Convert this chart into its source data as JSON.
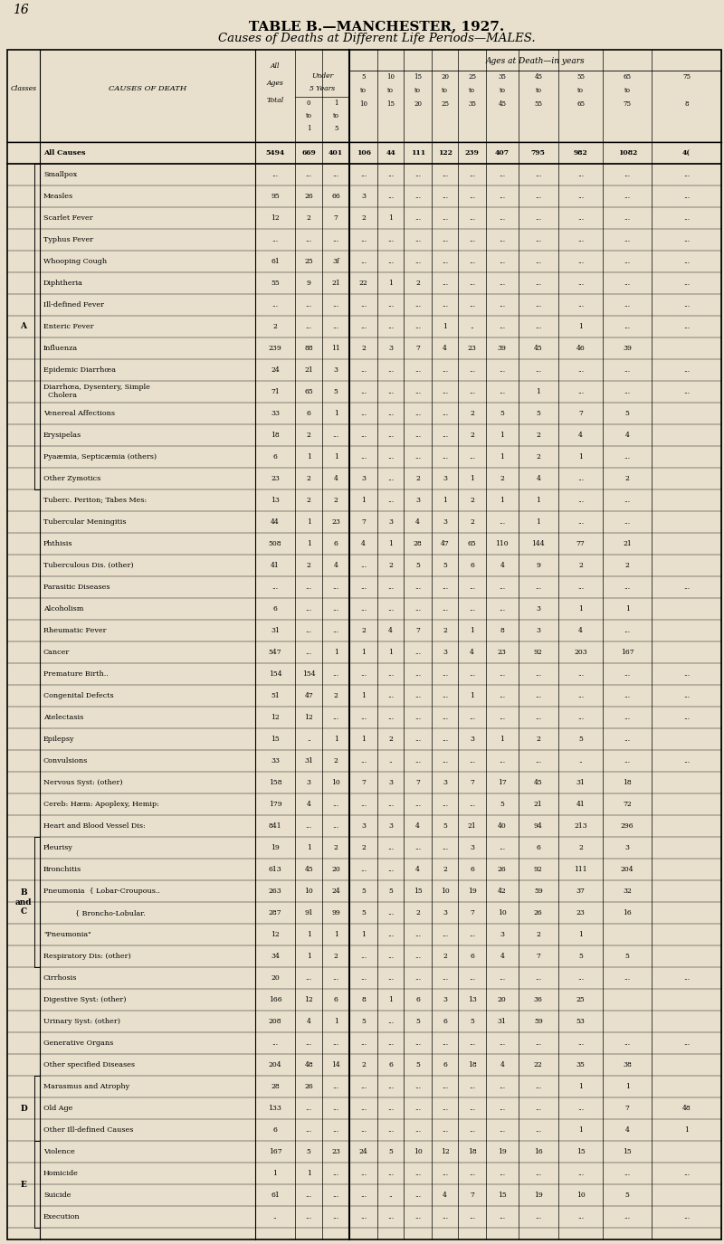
{
  "title1": "TABLE B.—MANCHESTER, 1927.",
  "title2": "Causes of Deaths at Different Life Periods—MALES.",
  "page_number": "16",
  "bg_color": "#e8e0cc",
  "rows": [
    {
      "cause": "All Causes",
      "total": "5494",
      "u0": "669",
      "u1": "401",
      "a5": "106",
      "a10": "44",
      "a15": "111",
      "a20": "122",
      "a25": "239",
      "a35": "407",
      "a45": "795",
      "a55": "982",
      "a65": "1082",
      "a75": "4(",
      "bold": true
    },
    {
      "cause": "Smallpox",
      "total": "...",
      "u0": "...",
      "u1": "...",
      "a5": "...",
      "a10": "...",
      "a15": "...",
      "a20": "...",
      "a25": "...",
      "a35": "...",
      "a45": "...",
      "a55": "...",
      "a65": "...",
      "a75": "..."
    },
    {
      "cause": "Measles",
      "total": "95",
      "u0": "26",
      "u1": "66",
      "a5": "3",
      "a10": "...",
      "a15": "...",
      "a20": "...",
      "a25": "...",
      "a35": "...",
      "a45": "...",
      "a55": "...",
      "a65": "...",
      "a75": "..."
    },
    {
      "cause": "Scarlet Fever",
      "total": "12",
      "u0": "2",
      "u1": "7",
      "a5": "2",
      "a10": "1",
      "a15": "...",
      "a20": "...",
      "a25": "...",
      "a35": "...",
      "a45": "...",
      "a55": "...",
      "a65": "...",
      "a75": "..."
    },
    {
      "cause": "Typhus Fever",
      "total": "...",
      "u0": "...",
      "u1": "...",
      "a5": "...",
      "a10": "...",
      "a15": "...",
      "a20": "...",
      "a25": "...",
      "a35": "...",
      "a45": "...",
      "a55": "...",
      "a65": "...",
      "a75": "..."
    },
    {
      "cause": "Whooping Cough",
      "total": "61",
      "u0": "25",
      "u1": "3f",
      "a5": "...",
      "a10": "...",
      "a15": "...",
      "a20": "...",
      "a25": "...",
      "a35": "...",
      "a45": "...",
      "a55": "...",
      "a65": "...",
      "a75": "..."
    },
    {
      "cause": "Diphtheria",
      "total": "55",
      "u0": "9",
      "u1": "21",
      "a5": "22",
      "a10": "1",
      "a15": "2",
      "a20": "...",
      "a25": "...",
      "a35": "...",
      "a45": "...",
      "a55": "...",
      "a65": "...",
      "a75": "..."
    },
    {
      "cause": "Ill-defined Fever",
      "total": "...",
      "u0": "...",
      "u1": "...",
      "a5": "...",
      "a10": "...",
      "a15": "...",
      "a20": "...",
      "a25": "...",
      "a35": "...",
      "a45": "...",
      "a55": "...",
      "a65": "...",
      "a75": "..."
    },
    {
      "cause": "Enteric Fever",
      "total": "2",
      "u0": "...",
      "u1": "...",
      "a5": "...",
      "a10": "...",
      "a15": "...",
      "a20": "1",
      "a25": "..",
      "a35": "...",
      "a45": "...",
      "a55": "1",
      "a65": "...",
      "a75": "..."
    },
    {
      "cause": "Influenza",
      "total": "239",
      "u0": "88",
      "u1": "11",
      "a5": "2",
      "a10": "3",
      "a15": "7",
      "a20": "4",
      "a25": "23",
      "a35": "39",
      "a45": "45",
      "a55": "46",
      "a65": "39",
      "a75": ""
    },
    {
      "cause": "Epidemic Diarrhœa",
      "total": "24",
      "u0": "21",
      "u1": "3",
      "a5": "...",
      "a10": "...",
      "a15": "...",
      "a20": "...",
      "a25": "...",
      "a35": "...",
      "a45": "...",
      "a55": "...",
      "a65": "...",
      "a75": "..."
    },
    {
      "cause": "Diarrhœa, Dysentery, Simple\n  Cholera",
      "total": "71",
      "u0": "65",
      "u1": "5",
      "a5": "...",
      "a10": "...",
      "a15": "...",
      "a20": "...",
      "a25": "...",
      "a35": "...",
      "a45": "1",
      "a55": "...",
      "a65": "...",
      "a75": "...",
      "multiline": true
    },
    {
      "cause": "Venereal Affections",
      "total": "33",
      "u0": "6",
      "u1": "1",
      "a5": "...",
      "a10": "...",
      "a15": "...",
      "a20": "...",
      "a25": "2",
      "a35": "5",
      "a45": "5",
      "a55": "7",
      "a65": "5",
      "a75": ""
    },
    {
      "cause": "Erysipelas",
      "total": "18",
      "u0": "2",
      "u1": "...",
      "a5": "...",
      "a10": "...",
      "a15": "...",
      "a20": "...",
      "a25": "2",
      "a35": "1",
      "a45": "2",
      "a55": "4",
      "a65": "4",
      "a75": ""
    },
    {
      "cause": "Pyaæmia, Septicæmia (others)",
      "total": "6",
      "u0": "1",
      "u1": "1",
      "a5": "...",
      "a10": "...",
      "a15": "...",
      "a20": "...",
      "a25": "...",
      "a35": "1",
      "a45": "2",
      "a55": "1",
      "a65": "...",
      "a75": ""
    },
    {
      "cause": "Other Zymotics",
      "total": "23",
      "u0": "2",
      "u1": "4",
      "a5": "3",
      "a10": "...",
      "a15": "2",
      "a20": "3",
      "a25": "1",
      "a35": "2",
      "a45": "4",
      "a55": "...",
      "a65": "2",
      "a75": ""
    },
    {
      "cause": "Tuberc. Periton; Tabes Mes:",
      "total": "13",
      "u0": "2",
      "u1": "2",
      "a5": "1",
      "a10": "...",
      "a15": "3",
      "a20": "1",
      "a25": "2",
      "a35": "1",
      "a45": "1",
      "a55": "...",
      "a65": "...",
      "a75": ""
    },
    {
      "cause": "Tubercular Meningitis",
      "total": "44",
      "u0": "1",
      "u1": "23",
      "a5": "7",
      "a10": "3",
      "a15": "4",
      "a20": "3",
      "a25": "2",
      "a35": "...",
      "a45": "1",
      "a55": "...",
      "a65": "...",
      "a75": ""
    },
    {
      "cause": "Phthisis",
      "total": "508",
      "u0": "1",
      "u1": "6",
      "a5": "4",
      "a10": "1",
      "a15": "28",
      "a20": "47",
      "a25": "65",
      "a35": "110",
      "a45": "144",
      "a55": "77",
      "a65": "21",
      "a75": ""
    },
    {
      "cause": "Tuberculous Dis. (other)",
      "total": "41",
      "u0": "2",
      "u1": "4",
      "a5": "...",
      "a10": "2",
      "a15": "5",
      "a20": "5",
      "a25": "6",
      "a35": "4",
      "a45": "9",
      "a55": "2",
      "a65": "2",
      "a75": ""
    },
    {
      "cause": "Parasitic Diseases",
      "total": "...",
      "u0": "...",
      "u1": "...",
      "a5": "...",
      "a10": "...",
      "a15": "...",
      "a20": "...",
      "a25": "...",
      "a35": "...",
      "a45": "...",
      "a55": "...",
      "a65": "...",
      "a75": "..."
    },
    {
      "cause": "Alcoholism",
      "total": "6",
      "u0": "...",
      "u1": "...",
      "a5": "...",
      "a10": "...",
      "a15": "...",
      "a20": "...",
      "a25": "...",
      "a35": "...",
      "a45": "3",
      "a55": "1",
      "a65": "1",
      "a75": ""
    },
    {
      "cause": "Rheumatic Fever",
      "total": "31",
      "u0": "...",
      "u1": "...",
      "a5": "2",
      "a10": "4",
      "a15": "7",
      "a20": "2",
      "a25": "1",
      "a35": "8",
      "a45": "3",
      "a55": "4",
      "a65": "...",
      "a75": ""
    },
    {
      "cause": "Cancer",
      "total": "547",
      "u0": "...",
      "u1": "1",
      "a5": "1",
      "a10": "1",
      "a15": "...",
      "a20": "3",
      "a25": "4",
      "a35": "23",
      "a45": "92",
      "a55": "203",
      "a65": "167",
      "a75": ""
    },
    {
      "cause": "Premature Birth..",
      "total": "154",
      "u0": "154",
      "u1": "...",
      "a5": "...",
      "a10": "...",
      "a15": "...",
      "a20": "...",
      "a25": "...",
      "a35": "...",
      "a45": "...",
      "a55": "...",
      "a65": "...",
      "a75": "..."
    },
    {
      "cause": "Congenital Defects",
      "total": "51",
      "u0": "47",
      "u1": "2",
      "a5": "1",
      "a10": "...",
      "a15": "...",
      "a20": "...",
      "a25": "1",
      "a35": "...",
      "a45": "...",
      "a55": "...",
      "a65": "...",
      "a75": "..."
    },
    {
      "cause": "Atelectasis",
      "total": "12",
      "u0": "12",
      "u1": "...",
      "a5": "...",
      "a10": "...",
      "a15": "...",
      "a20": "...",
      "a25": "...",
      "a35": "...",
      "a45": "...",
      "a55": "...",
      "a65": "...",
      "a75": "..."
    },
    {
      "cause": "Epilepsy",
      "total": "15",
      "u0": "..",
      "u1": "1",
      "a5": "1",
      "a10": "2",
      "a15": "...",
      "a20": "...",
      "a25": "3",
      "a35": "1",
      "a45": "2",
      "a55": "5",
      "a65": "...",
      "a75": ""
    },
    {
      "cause": "Convulsions",
      "total": "33",
      "u0": "31",
      "u1": "2",
      "a5": "...",
      "a10": "..",
      "a15": "...",
      "a20": "...",
      "a25": "...",
      "a35": "...",
      "a45": "...",
      "a55": "..",
      "a65": "...",
      "a75": "..."
    },
    {
      "cause": "Nervous Syst: (other)",
      "total": "158",
      "u0": "3",
      "u1": "10",
      "a5": "7",
      "a10": "3",
      "a15": "7",
      "a20": "3",
      "a25": "7",
      "a35": "17",
      "a45": "45",
      "a55": "31",
      "a65": "18",
      "a75": ""
    },
    {
      "cause": "Cereb: Hæm: Apoplexy, Hemip:",
      "total": "179",
      "u0": "4",
      "u1": "...",
      "a5": "...",
      "a10": "...",
      "a15": "...",
      "a20": "...",
      "a25": "...",
      "a35": "5",
      "a45": "21",
      "a55": "41",
      "a65": "72",
      "a75": ""
    },
    {
      "cause": "Heart and Blood Vessel Dis:",
      "total": "841",
      "u0": "...",
      "u1": "...",
      "a5": "3",
      "a10": "3",
      "a15": "4",
      "a20": "5",
      "a25": "21",
      "a35": "40",
      "a45": "94",
      "a55": "213",
      "a65": "296",
      "a75": ""
    },
    {
      "cause": "Pleurisy",
      "total": "19",
      "u0": "1",
      "u1": "2",
      "a5": "2",
      "a10": "...",
      "a15": "...",
      "a20": "...",
      "a25": "3",
      "a35": "...",
      "a45": "6",
      "a55": "2",
      "a65": "3",
      "a75": ""
    },
    {
      "cause": "Bronchitis",
      "total": "613",
      "u0": "45",
      "u1": "20",
      "a5": "...",
      "a10": "...",
      "a15": "4",
      "a20": "2",
      "a25": "6",
      "a35": "26",
      "a45": "92",
      "a55": "111",
      "a65": "204",
      "a75": ""
    },
    {
      "cause": "Pneumonia  { Lobar-Croupous..",
      "total": "263",
      "u0": "10",
      "u1": "24",
      "a5": "5",
      "a10": "5",
      "a15": "15",
      "a20": "10",
      "a25": "19",
      "a35": "42",
      "a45": "59",
      "a55": "37",
      "a65": "32",
      "a75": ""
    },
    {
      "cause": "              { Broncho-Lobular.",
      "total": "287",
      "u0": "91",
      "u1": "99",
      "a5": "5",
      "a10": "...",
      "a15": "2",
      "a20": "3",
      "a25": "7",
      "a35": "10",
      "a45": "26",
      "a55": "23",
      "a65": "16",
      "a75": ""
    },
    {
      "cause": "\"Pneumonia\"",
      "total": "12",
      "u0": "1",
      "u1": "1",
      "a5": "1",
      "a10": "...",
      "a15": "...",
      "a20": "...",
      "a25": "...",
      "a35": "3",
      "a45": "2",
      "a55": "1",
      "a65": "",
      "a75": ""
    },
    {
      "cause": "Respiratory Dis: (other)",
      "total": "34",
      "u0": "1",
      "u1": "2",
      "a5": "...",
      "a10": "...",
      "a15": "...",
      "a20": "2",
      "a25": "6",
      "a35": "4",
      "a45": "7",
      "a55": "5",
      "a65": "5",
      "a75": ""
    },
    {
      "cause": "Cirrhosis",
      "total": "20",
      "u0": "...",
      "u1": "...",
      "a5": "...",
      "a10": "...",
      "a15": "...",
      "a20": "...",
      "a25": "...",
      "a35": "...",
      "a45": "...",
      "a55": "...",
      "a65": "...",
      "a75": "..."
    },
    {
      "cause": "Digestive Syst: (other)",
      "total": "166",
      "u0": "12",
      "u1": "6",
      "a5": "8",
      "a10": "1",
      "a15": "6",
      "a20": "3",
      "a25": "13",
      "a35": "20",
      "a45": "36",
      "a55": "25",
      "a65": "",
      "a75": ""
    },
    {
      "cause": "Urinary Syst: (other)",
      "total": "208",
      "u0": "4",
      "u1": "1",
      "a5": "5",
      "a10": "...",
      "a15": "5",
      "a20": "6",
      "a25": "5",
      "a35": "31",
      "a45": "59",
      "a55": "53",
      "a65": "",
      "a75": ""
    },
    {
      "cause": "Generative Organs",
      "total": "...",
      "u0": "...",
      "u1": "...",
      "a5": "...",
      "a10": "...",
      "a15": "...",
      "a20": "...",
      "a25": "...",
      "a35": "...",
      "a45": "...",
      "a55": "...",
      "a65": "...",
      "a75": "..."
    },
    {
      "cause": "Other specified Diseases",
      "total": "204",
      "u0": "48",
      "u1": "14",
      "a5": "2",
      "a10": "6",
      "a15": "5",
      "a20": "6",
      "a25": "18",
      "a35": "4",
      "a45": "22",
      "a55": "35",
      "a65": "38",
      "a75": ""
    },
    {
      "cause": "Marasmus and Atrophy",
      "total": "28",
      "u0": "26",
      "u1": "...",
      "a5": "...",
      "a10": "...",
      "a15": "...",
      "a20": "...",
      "a25": "...",
      "a35": "...",
      "a45": "...",
      "a55": "1",
      "a65": "1",
      "a75": ""
    },
    {
      "cause": "Old Age",
      "total": "133",
      "u0": "...",
      "u1": "...",
      "a5": "...",
      "a10": "...",
      "a15": "...",
      "a20": "...",
      "a25": "...",
      "a35": "...",
      "a45": "...",
      "a55": "...",
      "a65": "7",
      "a75": "48"
    },
    {
      "cause": "Other Ill-defined Causes",
      "total": "6",
      "u0": "...",
      "u1": "...",
      "a5": "...",
      "a10": "...",
      "a15": "...",
      "a20": "...",
      "a25": "...",
      "a35": "...",
      "a45": "...",
      "a55": "1",
      "a65": "4",
      "a75": "1"
    },
    {
      "cause": "Violence",
      "total": "167",
      "u0": "5",
      "u1": "23",
      "a5": "24",
      "a10": "5",
      "a15": "10",
      "a20": "12",
      "a25": "18",
      "a35": "19",
      "a45": "16",
      "a55": "15",
      "a65": "15",
      "a75": ""
    },
    {
      "cause": "Homicide",
      "total": "1",
      "u0": "1",
      "u1": "...",
      "a5": "...",
      "a10": "...",
      "a15": "...",
      "a20": "...",
      "a25": "...",
      "a35": "...",
      "a45": "...",
      "a55": "...",
      "a65": "...",
      "a75": "..."
    },
    {
      "cause": "Suicide",
      "total": "61",
      "u0": "...",
      "u1": "...",
      "a5": "...",
      "a10": "..",
      "a15": "...",
      "a20": "4",
      "a25": "7",
      "a35": "15",
      "a45": "19",
      "a55": "10",
      "a65": "5",
      "a75": ""
    },
    {
      "cause": "Execution",
      "total": "..",
      "u0": "...",
      "u1": "...",
      "a5": "...",
      "a10": "...",
      "a15": "...",
      "a20": "...",
      "a25": "...",
      "a35": "...",
      "a45": "...",
      "a55": "...",
      "a65": "...",
      "a75": "..."
    }
  ],
  "class_groups": [
    {
      "label": "A",
      "start": 1,
      "end": 15
    },
    {
      "label": "B\nand\nC",
      "start": 32,
      "end": 37
    },
    {
      "label": "D",
      "start": 43,
      "end": 45
    },
    {
      "label": "E",
      "start": 46,
      "end": 49
    }
  ]
}
